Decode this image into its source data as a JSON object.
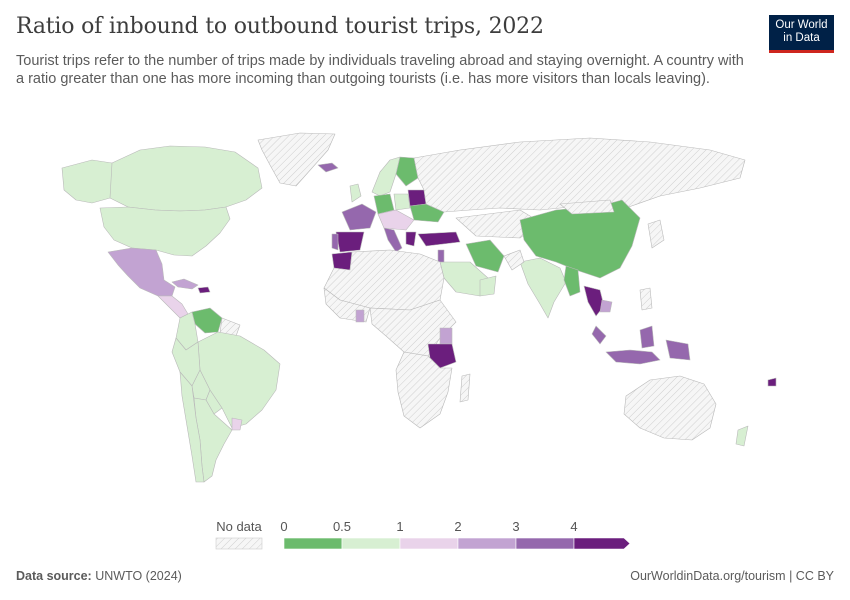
{
  "header": {
    "title": "Ratio of inbound to outbound tourist trips, 2022",
    "subtitle": "Tourist trips refer to the number of trips made by individuals traveling abroad and staying overnight. A country with a ratio greater than one has more incoming than outgoing tourists (i.e. has more visitors than locals leaving).",
    "logo_line1": "Our World",
    "logo_line2": "in Data"
  },
  "legend": {
    "no_data_label": "No data",
    "ticks": [
      "0",
      "0.5",
      "1",
      "2",
      "3",
      "4"
    ],
    "colors": [
      "#6cbb6d",
      "#d7efd2",
      "#e9d3ea",
      "#c2a3d2",
      "#9568ad",
      "#6b1e7d"
    ],
    "no_data_color": "#eeeeee"
  },
  "footer": {
    "source_label": "Data source:",
    "source_value": "UNWTO (2024)",
    "link": "OurWorldinData.org/tourism | CC BY"
  },
  "colors": {
    "dark_green": "#6cbb6d",
    "light_green": "#d7efd2",
    "lightest_purple": "#e9d3ea",
    "light_purple": "#c2a3d2",
    "mid_purple": "#9568ad",
    "dark_purple": "#6b1e7d",
    "no_data": "#eeeeee",
    "border": "#b7b7b7"
  }
}
